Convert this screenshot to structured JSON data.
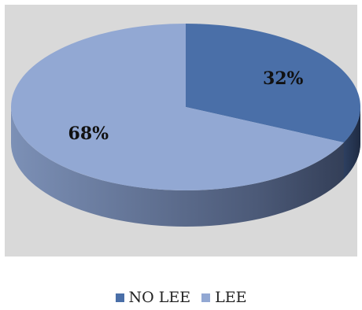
{
  "chart_data": {
    "type": "pie",
    "labels": [
      "NO LEE",
      "LEE"
    ],
    "values": [
      32,
      68
    ],
    "data_labels": [
      "32%",
      "68%"
    ],
    "colors": [
      "#4a6fa8",
      "#92a8d3"
    ],
    "legend_position": "bottom",
    "style": "3d"
  },
  "legend": [
    {
      "label": "NO LEE",
      "color": "#4a6fa8"
    },
    {
      "label": "LEE",
      "color": "#92a8d3"
    }
  ]
}
